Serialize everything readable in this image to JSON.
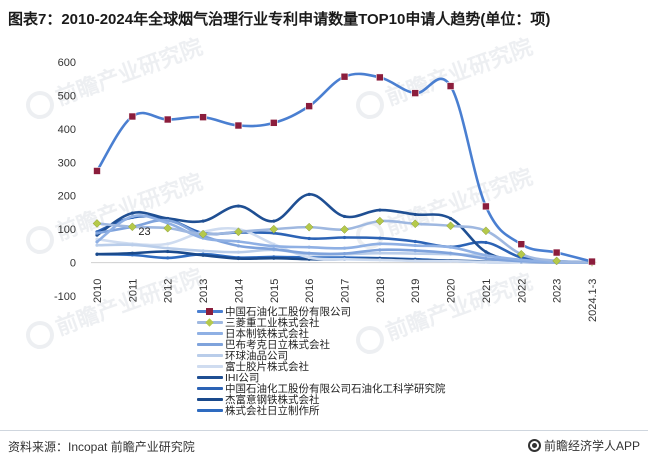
{
  "title": "图表7：2010-2024年全球烟气治理行业专利申请数量TOP10申请人趋势(单位：项)",
  "source": "资料来源：Incopat 前瞻产业研究院",
  "brand": "前瞻经济学人APP",
  "brand_icon": "qianzhan-logo-icon",
  "chart_data": {
    "type": "line",
    "title": "图表7：2010-2024年全球烟气治理行业专利申请数量TOP10申请人趋势(单位：项)",
    "xlabel": "",
    "ylabel": "",
    "ylim": [
      -100,
      600
    ],
    "yticks": [
      "600",
      "500",
      "400",
      "300",
      "200",
      "100",
      "0",
      "-100"
    ],
    "grid": false,
    "legend_position": "bottom-center",
    "categories": [
      "2010",
      "2011",
      "2012",
      "2013",
      "2014",
      "2015",
      "2016",
      "2017",
      "2018",
      "2019",
      "2020",
      "2021",
      "2022",
      "2023",
      "2024.1-3"
    ],
    "annotations": [
      {
        "label": "23",
        "x": "2011",
        "y": 23
      }
    ],
    "series": [
      {
        "name": "中国石油化工股份有限公司",
        "color": "#4a7fd1",
        "marker": "square",
        "marker_color": "#8b1d3c",
        "values": [
          274,
          437,
          428,
          435,
          410,
          418,
          468,
          556,
          554,
          507,
          528,
          168,
          55,
          30,
          3
        ]
      },
      {
        "name": "三菱重工业株式会社",
        "color": "#9fb8e0",
        "marker": "diamond",
        "marker_color": "#b5c94a",
        "values": [
          117,
          107,
          103,
          85,
          92,
          100,
          106,
          99,
          124,
          116,
          110,
          95,
          25,
          5,
          1
        ]
      },
      {
        "name": "日本制铁株式会社",
        "color": "#8fb0e4",
        "values": [
          62,
          138,
          118,
          73,
          63,
          49,
          46,
          43,
          56,
          51,
          46,
          22,
          8,
          2,
          0
        ]
      },
      {
        "name": "巴布考克日立株式会社",
        "color": "#7fa3dc",
        "values": [
          88,
          107,
          126,
          80,
          50,
          40,
          28,
          27,
          38,
          36,
          28,
          12,
          4,
          1,
          0
        ]
      },
      {
        "name": "环球油品公司",
        "color": "#b9cdea",
        "values": [
          52,
          53,
          43,
          35,
          31,
          38,
          25,
          25,
          28,
          27,
          25,
          20,
          6,
          2,
          0
        ]
      },
      {
        "name": "富士胶片株式会社",
        "color": "#cfdcf0",
        "values": [
          70,
          56,
          56,
          92,
          100,
          55,
          15,
          10,
          8,
          5,
          4,
          2,
          1,
          0,
          0
        ]
      },
      {
        "name": "IHI公司",
        "color": "#1f4f93",
        "values": [
          82,
          148,
          132,
          124,
          169,
          124,
          204,
          138,
          157,
          144,
          132,
          32,
          6,
          1,
          0
        ]
      },
      {
        "name": "中国石油化工股份有限公司石油化工科学研究院",
        "color": "#2c63b5",
        "values": [
          92,
          135,
          130,
          88,
          90,
          88,
          72,
          75,
          73,
          63,
          47,
          60,
          15,
          4,
          1
        ]
      },
      {
        "name": "杰富意钢铁株式会社",
        "color": "#1a4a8c",
        "values": [
          25,
          28,
          33,
          22,
          12,
          13,
          10,
          10,
          12,
          8,
          6,
          3,
          1,
          0,
          0
        ]
      },
      {
        "name": "株式会社日立制作所",
        "color": "#2e6bc0",
        "values": [
          25,
          23,
          14,
          25,
          15,
          17,
          15,
          15,
          13,
          10,
          5,
          2,
          1,
          0,
          0
        ]
      }
    ]
  },
  "watermark": {
    "text": "前瞻产业研究院",
    "icon": "watermark-logo-icon"
  }
}
